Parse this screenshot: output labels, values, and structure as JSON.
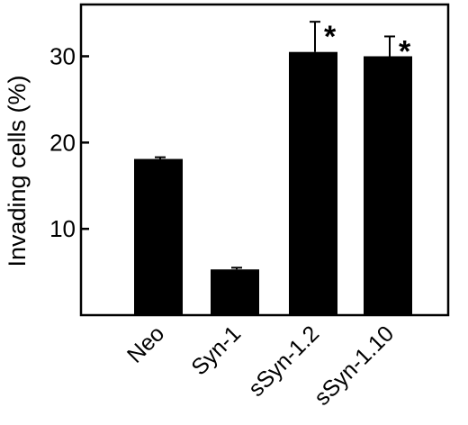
{
  "chart_data": {
    "type": "bar",
    "title": "",
    "xlabel": "",
    "ylabel": "Invading cells (%)",
    "ylim": [
      0,
      36
    ],
    "yticks": [
      10,
      20,
      30
    ],
    "categories": [
      "Neo",
      "Syn-1",
      "sSyn-1.2",
      "sSyn-1.10"
    ],
    "values": [
      18.1,
      5.3,
      30.5,
      30.0
    ],
    "error_upper": [
      0.2,
      0.2,
      3.5,
      2.3
    ],
    "significance": [
      "",
      "",
      "*",
      "*"
    ],
    "grid": false,
    "legend": "none",
    "bar_color": "#000000"
  }
}
